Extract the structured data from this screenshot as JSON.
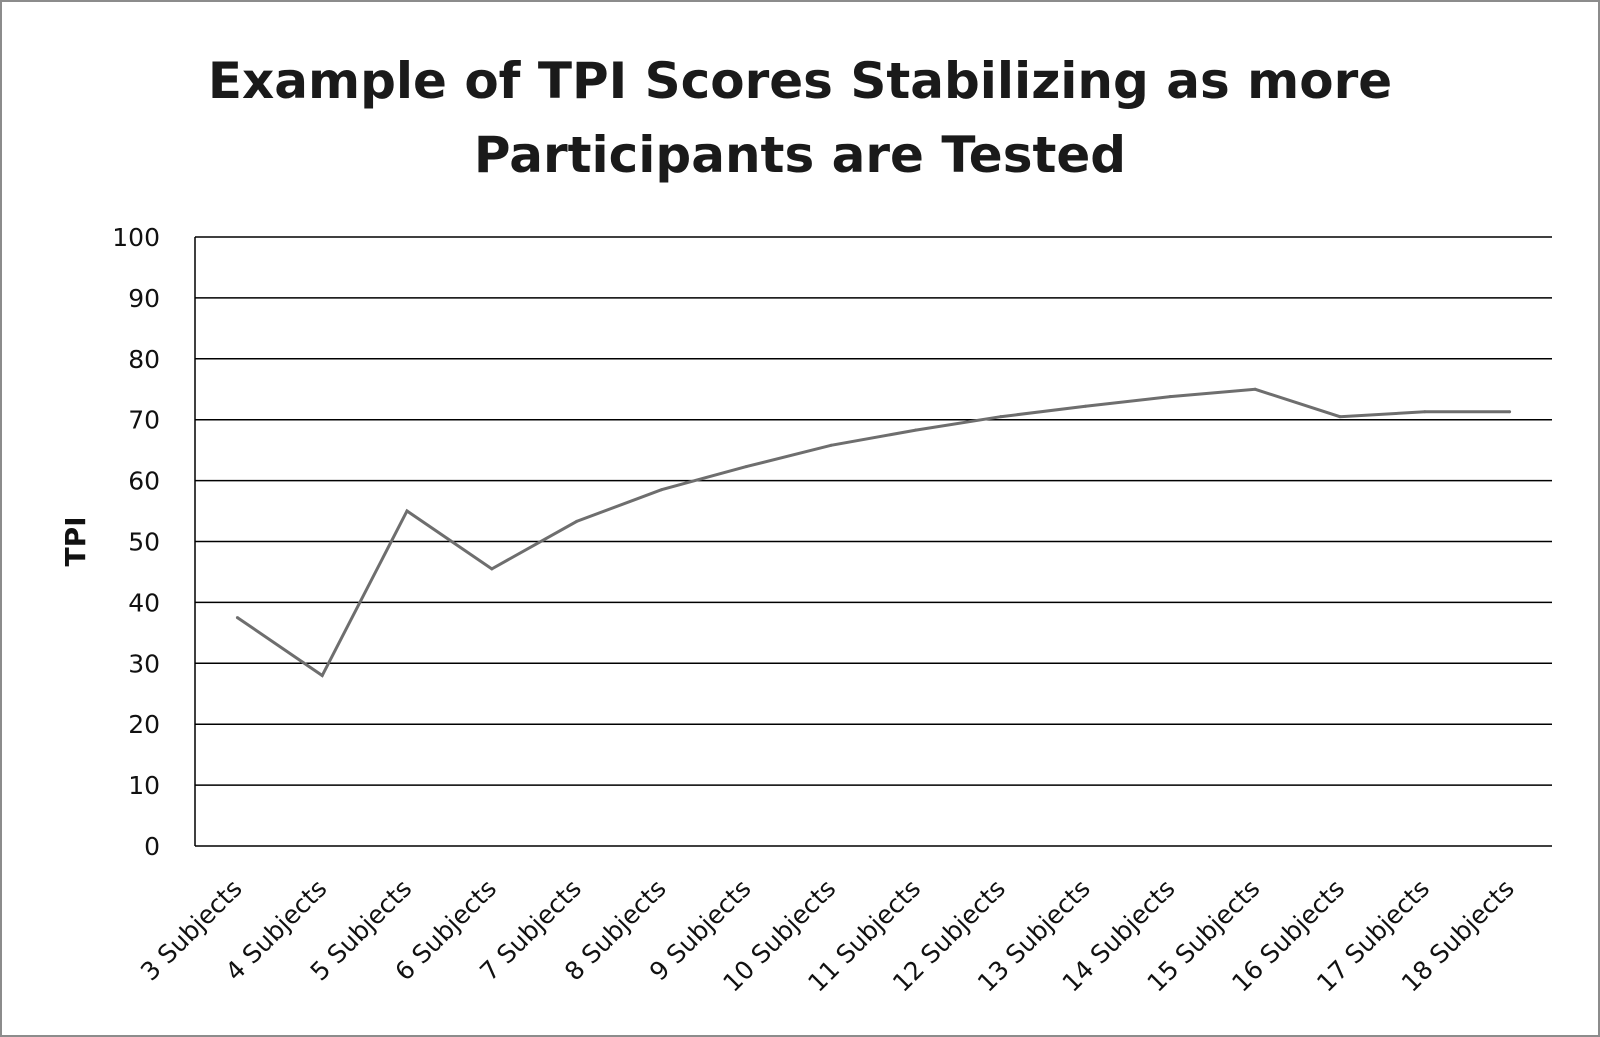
{
  "chart_data": {
    "type": "line",
    "title_lines": [
      "Example of TPI Scores Stabilizing as more",
      "Participants are Tested"
    ],
    "ylabel": "TPI",
    "xlabel": "",
    "categories": [
      "3 Subjects",
      "4 Subjects",
      "5 Subjects",
      "6 Subjects",
      "7 Subjects",
      "8 Subjects",
      "9 Subjects",
      "10 Subjects",
      "11 Subjects",
      "12 Subjects",
      "13 Subjects",
      "14 Subjects",
      "15 Subjects",
      "16 Subjects",
      "17 Subjects",
      "18 Subjects"
    ],
    "yticks": [
      "0",
      "10",
      "20",
      "30",
      "40",
      "50",
      "60",
      "70",
      "80",
      "90",
      "100"
    ],
    "ylim": [
      0,
      100
    ],
    "grid": true,
    "legend": "none",
    "series": [
      {
        "values": [
          37.5,
          28,
          55,
          45.5,
          53.3,
          58.5,
          62.3,
          65.8,
          68.3,
          70.5,
          72.2,
          73.8,
          75,
          70.5,
          71.3,
          71.3
        ],
        "color": "#6e6e6e"
      }
    ]
  }
}
